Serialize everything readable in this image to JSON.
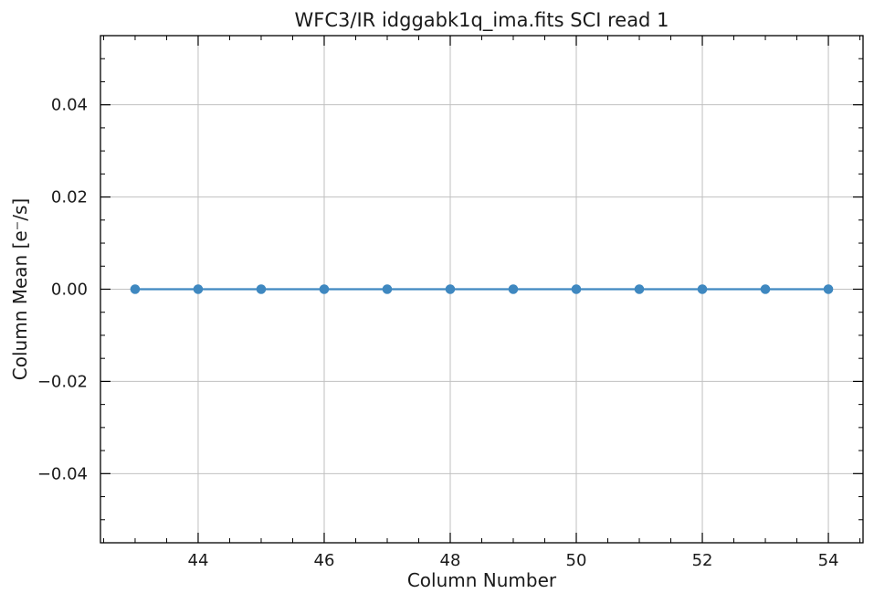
{
  "chart_data": {
    "type": "line",
    "title": "WFC3/IR idggabk1q_ima.fits SCI read 1",
    "xlabel": "Column Number",
    "ylabel": "Column Mean [e⁻/s]",
    "xlim": [
      42.45,
      54.55
    ],
    "ylim": [
      -0.055,
      0.055
    ],
    "xticks": [
      44,
      46,
      48,
      50,
      52,
      54
    ],
    "xtick_labels": [
      "44",
      "46",
      "48",
      "50",
      "52",
      "54"
    ],
    "yticks": [
      -0.04,
      -0.02,
      0.0,
      0.02,
      0.04
    ],
    "ytick_labels": [
      "−0.04",
      "−0.02",
      "0.00",
      "0.02",
      "0.04"
    ],
    "grid": true,
    "series": [
      {
        "x": [
          43,
          44,
          45,
          46,
          47,
          48,
          49,
          50,
          51,
          52,
          53,
          54
        ],
        "values": [
          0,
          0,
          0,
          0,
          0,
          0,
          0,
          0,
          0,
          0,
          0,
          0
        ],
        "color": "#3f88c0"
      }
    ]
  }
}
